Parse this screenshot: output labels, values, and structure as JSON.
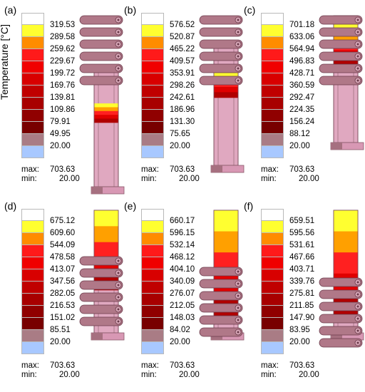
{
  "axis_label": "Temperature [°C]",
  "max_label": "max:",
  "min_label": "min:",
  "max_value": "703.63",
  "min_value": "20.00",
  "colorbar_colors": [
    "#ffffff",
    "#ffff30",
    "#ff8c00",
    "#ff1a1a",
    "#f00000",
    "#d80000",
    "#c00000",
    "#a80000",
    "#900000",
    "#780000",
    "#a97c85",
    "#a8c8ff"
  ],
  "panels": [
    {
      "label": "(a)",
      "ticks": [
        "319.53",
        "289.58",
        "259.62",
        "229.67",
        "199.72",
        "169.76",
        "139.81",
        "109.86",
        "79.91",
        "49.95",
        "20.00"
      ],
      "coils": 6,
      "heat_top": 0.3,
      "heat_bottom": 0.46
    },
    {
      "label": "(b)",
      "ticks": [
        "576.52",
        "520.87",
        "465.22",
        "409.57",
        "353.91",
        "298.26",
        "242.61",
        "186.96",
        "131.30",
        "75.65",
        "20.00"
      ],
      "coils": 6,
      "heat_top": 0.22,
      "heat_bottom": 0.44
    },
    {
      "label": "(c)",
      "ticks": [
        "701.18",
        "633.06",
        "564.94",
        "496.83",
        "428.71",
        "360.59",
        "292.47",
        "224.35",
        "156.24",
        "88.12",
        "20.00"
      ],
      "coils": 6,
      "heat_top": 0.05,
      "heat_bottom": 0.42
    },
    {
      "label": "(d)",
      "ticks": [
        "675.12",
        "609.60",
        "544.09",
        "478.58",
        "413.07",
        "347.56",
        "282.05",
        "216.53",
        "151.02",
        "85.51",
        "20.00"
      ],
      "coils": 6,
      "heat_top": 0.0,
      "heat_bottom": 0.65
    },
    {
      "label": "(e)",
      "ticks": [
        "660.17",
        "596.15",
        "532.14",
        "468.12",
        "404.10",
        "340.09",
        "276.07",
        "212.05",
        "148.03",
        "84.02",
        "20.00"
      ],
      "coils": 6,
      "heat_top": 0.0,
      "heat_bottom": 0.86
    },
    {
      "label": "(f)",
      "ticks": [
        "659.51",
        "595.56",
        "531.61",
        "467.66",
        "403.71",
        "339.76",
        "275.81",
        "211.85",
        "147.90",
        "83.95",
        "20.00"
      ],
      "coils": 6,
      "heat_top": 0.0,
      "heat_bottom": 0.86
    }
  ]
}
